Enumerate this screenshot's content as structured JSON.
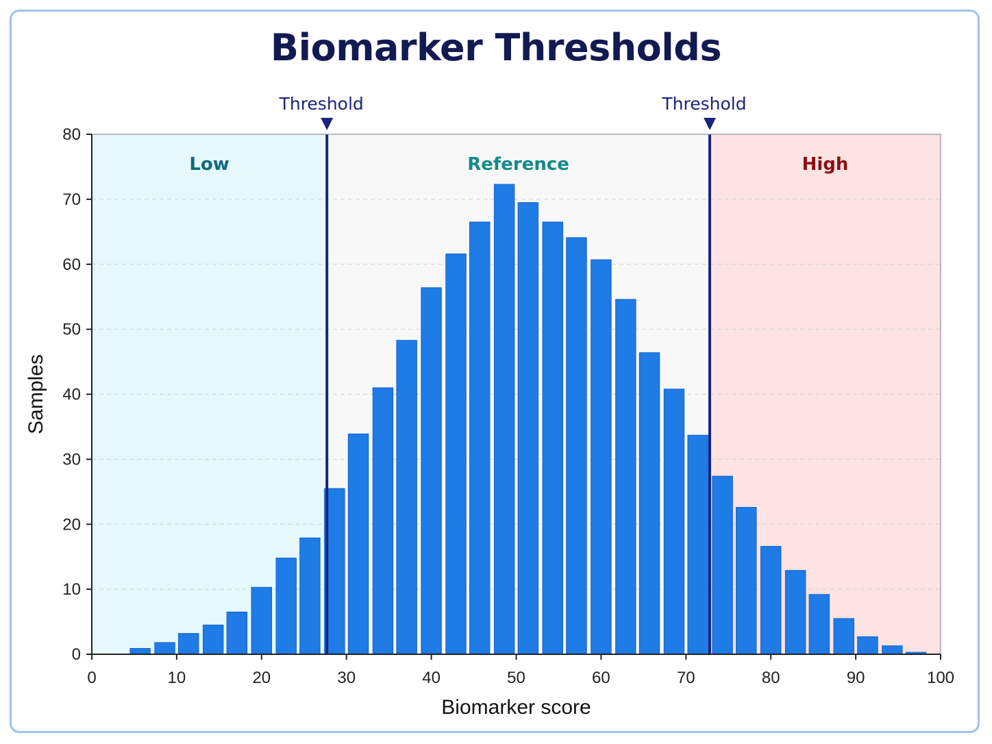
{
  "chart_data": {
    "type": "bar",
    "title": "Biomarker Thresholds",
    "xlabel": "Biomarker score",
    "ylabel": "Samples",
    "xlim": [
      0,
      100
    ],
    "ylim": [
      0,
      80
    ],
    "x_ticks": [
      0,
      10,
      20,
      30,
      40,
      50,
      60,
      70,
      80,
      90,
      100
    ],
    "y_ticks": [
      0,
      10,
      20,
      30,
      40,
      50,
      60,
      70,
      80
    ],
    "grid": "horizontal-dashed",
    "bin_width": 2.86,
    "bins": [
      {
        "x": 5.7,
        "value": 0.9
      },
      {
        "x": 8.6,
        "value": 1.8
      },
      {
        "x": 11.4,
        "value": 3.2
      },
      {
        "x": 14.3,
        "value": 4.5
      },
      {
        "x": 17.1,
        "value": 6.5
      },
      {
        "x": 20.0,
        "value": 10.3
      },
      {
        "x": 22.9,
        "value": 14.8
      },
      {
        "x": 25.7,
        "value": 17.9
      },
      {
        "x": 28.6,
        "value": 25.5
      },
      {
        "x": 31.4,
        "value": 33.9
      },
      {
        "x": 34.3,
        "value": 41.0
      },
      {
        "x": 37.1,
        "value": 48.3
      },
      {
        "x": 40.0,
        "value": 56.4
      },
      {
        "x": 42.9,
        "value": 61.6
      },
      {
        "x": 45.7,
        "value": 66.5
      },
      {
        "x": 48.6,
        "value": 72.3
      },
      {
        "x": 51.4,
        "value": 69.5
      },
      {
        "x": 54.3,
        "value": 66.5
      },
      {
        "x": 57.1,
        "value": 64.1
      },
      {
        "x": 60.0,
        "value": 60.7
      },
      {
        "x": 62.9,
        "value": 54.6
      },
      {
        "x": 65.7,
        "value": 46.4
      },
      {
        "x": 68.6,
        "value": 40.8
      },
      {
        "x": 71.4,
        "value": 33.7
      },
      {
        "x": 74.3,
        "value": 27.4
      },
      {
        "x": 77.1,
        "value": 22.6
      },
      {
        "x": 80.0,
        "value": 16.6
      },
      {
        "x": 82.9,
        "value": 12.9
      },
      {
        "x": 85.7,
        "value": 9.2
      },
      {
        "x": 88.6,
        "value": 5.5
      },
      {
        "x": 91.4,
        "value": 2.7
      },
      {
        "x": 94.3,
        "value": 1.3
      },
      {
        "x": 97.1,
        "value": 0.3
      }
    ],
    "bar_color": "#1f7be6",
    "thresholds": [
      {
        "label": "Threshold",
        "x": 27.7
      },
      {
        "label": "Threshold",
        "x": 72.8
      }
    ],
    "threshold_color": "#1a237e",
    "regions": [
      {
        "label": "Low",
        "from": 0,
        "to": 27.7,
        "fill": "#e6f8fb",
        "text_color": "#0f6b7f"
      },
      {
        "label": "Reference",
        "from": 27.7,
        "to": 72.8,
        "fill": "#f8f8f9",
        "text_color": "#138a8a"
      },
      {
        "label": "High",
        "from": 72.8,
        "to": 100,
        "fill": "#fde3e2",
        "text_color": "#8b1010"
      }
    ]
  }
}
